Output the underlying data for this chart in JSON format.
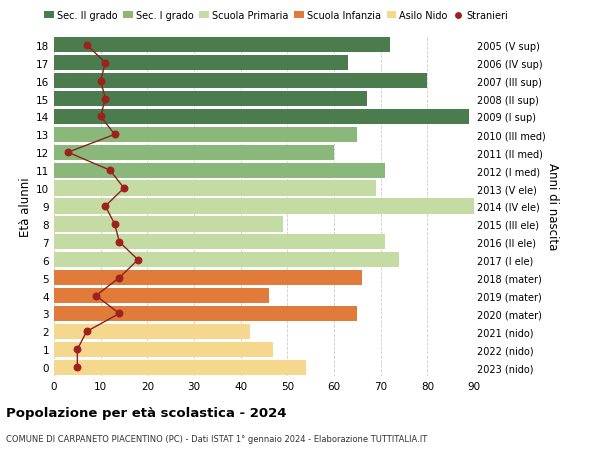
{
  "ages": [
    0,
    1,
    2,
    3,
    4,
    5,
    6,
    7,
    8,
    9,
    10,
    11,
    12,
    13,
    14,
    15,
    16,
    17,
    18
  ],
  "bar_values": [
    54,
    47,
    42,
    65,
    46,
    66,
    74,
    71,
    49,
    90,
    69,
    71,
    60,
    65,
    89,
    67,
    80,
    63,
    72
  ],
  "stranieri_values": [
    5,
    5,
    7,
    14,
    9,
    14,
    18,
    14,
    13,
    11,
    15,
    12,
    3,
    13,
    10,
    11,
    10,
    11,
    7
  ],
  "right_labels": [
    "2023 (nido)",
    "2022 (nido)",
    "2021 (nido)",
    "2020 (mater)",
    "2019 (mater)",
    "2018 (mater)",
    "2017 (I ele)",
    "2016 (II ele)",
    "2015 (III ele)",
    "2014 (IV ele)",
    "2013 (V ele)",
    "2012 (I med)",
    "2011 (II med)",
    "2010 (III med)",
    "2009 (I sup)",
    "2008 (II sup)",
    "2007 (III sup)",
    "2006 (IV sup)",
    "2005 (V sup)"
  ],
  "bar_colors": [
    "#f5d78e",
    "#f5d78e",
    "#f5d78e",
    "#e07b39",
    "#e07b39",
    "#e07b39",
    "#c5dba4",
    "#c5dba4",
    "#c5dba4",
    "#c5dba4",
    "#c5dba4",
    "#8ab87a",
    "#8ab87a",
    "#8ab87a",
    "#4a7c4e",
    "#4a7c4e",
    "#4a7c4e",
    "#4a7c4e",
    "#4a7c4e"
  ],
  "legend_labels": [
    "Sec. II grado",
    "Sec. I grado",
    "Scuola Primaria",
    "Scuola Infanzia",
    "Asilo Nido",
    "Stranieri"
  ],
  "legend_colors": [
    "#4a7c4e",
    "#8ab87a",
    "#c5dba4",
    "#e07b39",
    "#f5d78e",
    "#a02020"
  ],
  "ylabel": "Età alunni",
  "right_ylabel": "Anni di nascita",
  "title": "Popolazione per età scolastica - 2024",
  "subtitle": "COMUNE DI CARPANETO PIACENTINO (PC) - Dati ISTAT 1° gennaio 2024 - Elaborazione TUTTITALIA.IT",
  "xlim": [
    0,
    90
  ],
  "xticks": [
    0,
    10,
    20,
    30,
    40,
    50,
    60,
    70,
    80,
    90
  ],
  "bg_color": "#ffffff",
  "grid_color": "#cccccc",
  "stranieri_color": "#a02020",
  "line_color": "#8b2020"
}
